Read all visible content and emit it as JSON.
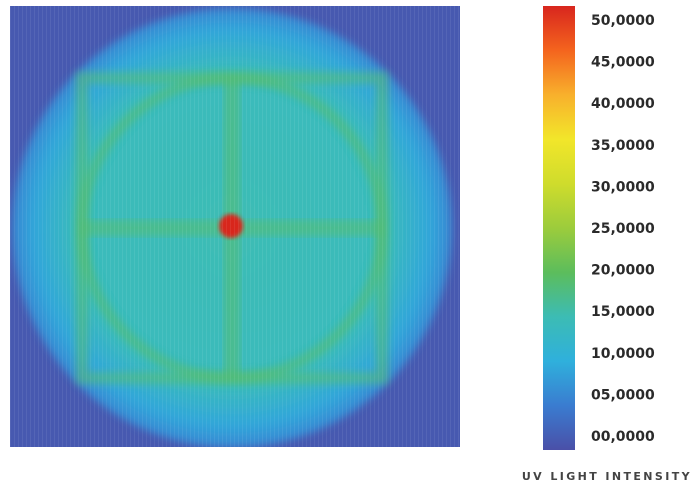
{
  "chart_data": {
    "type": "heatmap",
    "title": "",
    "colorbar": {
      "label": "UV LIGHT INTENSITY",
      "range": [
        0,
        50
      ],
      "ticks": [
        {
          "value": 50,
          "label": "50,0000"
        },
        {
          "value": 45,
          "label": "45,0000"
        },
        {
          "value": 40,
          "label": "40,0000"
        },
        {
          "value": 35,
          "label": "35,0000"
        },
        {
          "value": 30,
          "label": "30,0000"
        },
        {
          "value": 25,
          "label": "25,0000"
        },
        {
          "value": 20,
          "label": "20,0000"
        },
        {
          "value": 15,
          "label": "15,0000"
        },
        {
          "value": 10,
          "label": "10,0000"
        },
        {
          "value": 5,
          "label": "05,0000"
        },
        {
          "value": 0,
          "label": "00,0000"
        }
      ],
      "colorscale": [
        {
          "value": 0,
          "color": "#4a50a8"
        },
        {
          "value": 5,
          "color": "#3a7cd0"
        },
        {
          "value": 10,
          "color": "#2fb0dc"
        },
        {
          "value": 15,
          "color": "#3cbcb4"
        },
        {
          "value": 20,
          "color": "#5cbd5c"
        },
        {
          "value": 25,
          "color": "#9ccc3c"
        },
        {
          "value": 30,
          "color": "#cfdc2c"
        },
        {
          "value": 35,
          "color": "#f2e62a"
        },
        {
          "value": 40,
          "color": "#f8b02c"
        },
        {
          "value": 45,
          "color": "#f4641e"
        },
        {
          "value": 50,
          "color": "#d8261e"
        }
      ]
    },
    "intensity_map": {
      "background": 1,
      "disc_edge": 9,
      "disc_interior": 15,
      "cross_and_ring": 19,
      "center_peak": 50
    }
  }
}
